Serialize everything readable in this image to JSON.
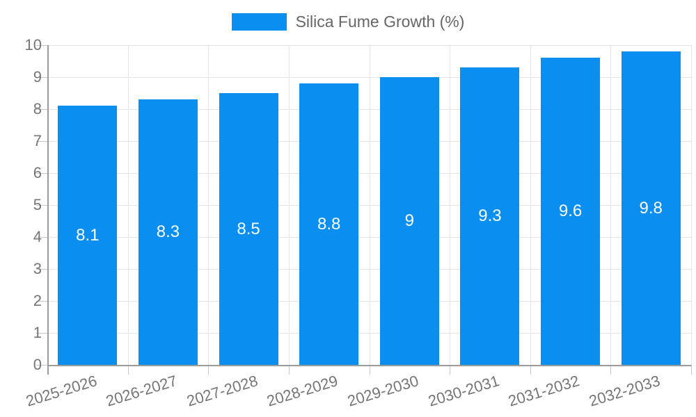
{
  "legend": {
    "label": "Silica Fume Growth (%)"
  },
  "chart_data": {
    "type": "bar",
    "title": "Silica Fume Growth (%)",
    "categories": [
      "2025-2026",
      "2026-2027",
      "2027-2028",
      "2028-2029",
      "2029-2030",
      "2030-2031",
      "2031-2032",
      "2032-2033"
    ],
    "values": [
      8.1,
      8.3,
      8.5,
      8.8,
      9,
      9.3,
      9.6,
      9.8
    ],
    "value_labels": [
      "8.1",
      "8.3",
      "8.5",
      "8.8",
      "9",
      "9.3",
      "9.6",
      "9.8"
    ],
    "xlabel": "",
    "ylabel": "",
    "ylim": [
      0,
      10
    ],
    "yticks": [
      0,
      1,
      2,
      3,
      4,
      5,
      6,
      7,
      8,
      9,
      10
    ],
    "grid": true,
    "legend_position": "top-center",
    "colors": {
      "bar": "#0a8ff0",
      "grid": "#e4e4e4",
      "axis": "#9b9b9b",
      "tick": "#c6c6c6",
      "tick_label": "#757575",
      "legend_text": "#666666",
      "data_label": "#ffffff",
      "background": "#ffffff"
    }
  }
}
